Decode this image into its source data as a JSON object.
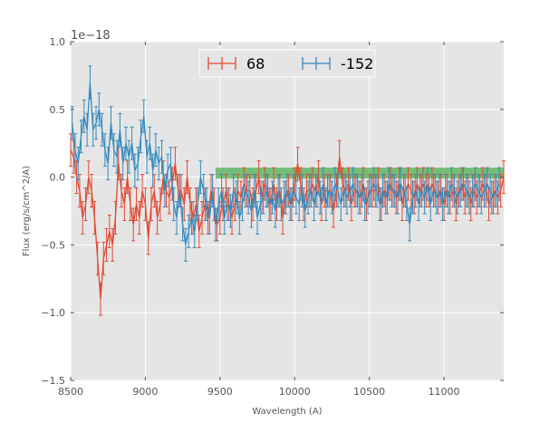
{
  "chart_data": {
    "type": "line",
    "title": "",
    "xlabel": "Wavelength (A)",
    "ylabel": "Flux (erg/s/cm^2/A)",
    "y_offset_label": "1e−18",
    "xlim": [
      8500,
      11400
    ],
    "ylim": [
      -1.5,
      1.0
    ],
    "x_ticks": [
      8500,
      9000,
      9500,
      10000,
      10500,
      11000
    ],
    "x_tick_labels": [
      "8500",
      "9000",
      "9500",
      "10000",
      "10500",
      "11000"
    ],
    "y_ticks": [
      1.0,
      0.5,
      0.0,
      -0.5,
      -1.0,
      -1.5
    ],
    "y_tick_labels": [
      "1.0",
      "0.5",
      "0.0",
      "−0.5",
      "−1.0",
      "−1.5"
    ],
    "grid": true,
    "legend_position": "top-center",
    "highlight_band": {
      "x0": 9470,
      "x1": 11400,
      "y0": -0.01,
      "y1": 0.07,
      "color": "#4CAF50"
    },
    "series": [
      {
        "name": "68",
        "color": "#E24A33",
        "x_start": 8500,
        "x_step": 20,
        "values": [
          0.2,
          0.15,
          0.0,
          -0.1,
          -0.3,
          -0.2,
          0.0,
          -0.1,
          -0.3,
          -0.6,
          -0.9,
          -0.6,
          -0.5,
          -0.4,
          -0.5,
          -0.3,
          0.1,
          -0.1,
          -0.2,
          0.0,
          -0.2,
          -0.35,
          -0.2,
          -0.3,
          -0.1,
          -0.2,
          -0.45,
          -0.2,
          -0.1,
          -0.3,
          -0.2,
          0.0,
          -0.1,
          -0.15,
          -0.05,
          0.1,
          -0.1,
          -0.1,
          -0.2,
          0.0,
          -0.2,
          -0.3,
          -0.2,
          -0.4,
          -0.3,
          -0.2,
          -0.3,
          -0.1,
          -0.2,
          -0.35,
          -0.3,
          -0.2,
          -0.1,
          -0.2,
          -0.3,
          -0.2,
          -0.1,
          -0.15,
          -0.05,
          -0.1,
          -0.1,
          -0.2,
          -0.1,
          0.0,
          -0.15,
          -0.05,
          -0.1,
          -0.2,
          -0.05,
          -0.2,
          -0.1,
          -0.3,
          -0.15,
          -0.1,
          -0.2,
          -0.05,
          0.1,
          -0.05,
          -0.2,
          -0.1,
          -0.1,
          -0.05,
          -0.1,
          0.0,
          -0.2,
          -0.1,
          -0.1,
          -0.1,
          -0.25,
          -0.1,
          0.15,
          -0.05,
          -0.1,
          -0.05,
          -0.2,
          -0.1,
          -0.1,
          -0.15,
          -0.05,
          -0.2,
          -0.1,
          -0.1,
          -0.1,
          -0.05,
          -0.2,
          -0.1,
          -0.15,
          -0.05,
          -0.1,
          -0.15,
          -0.05,
          -0.2,
          -0.1,
          -0.05,
          -0.1,
          -0.15,
          -0.05,
          -0.1,
          -0.05,
          -0.1,
          -0.1,
          -0.05,
          -0.1,
          -0.15,
          -0.1,
          -0.2,
          -0.1,
          -0.15,
          -0.1,
          -0.2,
          -0.1,
          -0.05,
          -0.15,
          -0.1,
          -0.2,
          -0.1,
          -0.15,
          -0.1,
          -0.05,
          -0.1,
          -0.2,
          -0.15,
          -0.1,
          -0.15,
          -0.1,
          0.0
        ],
        "err": 0.12
      },
      {
        "name": "-152",
        "color": "#348ABD",
        "x_start": 8510,
        "x_step": 20,
        "values": [
          0.4,
          0.2,
          0.1,
          0.3,
          0.45,
          0.35,
          0.7,
          0.35,
          0.4,
          0.5,
          0.35,
          0.2,
          0.1,
          0.4,
          0.2,
          0.15,
          0.35,
          0.1,
          0.25,
          0.15,
          0.25,
          0.05,
          0.1,
          0.3,
          0.45,
          0.15,
          0.25,
          0.05,
          0.2,
          0.1,
          0.15,
          -0.1,
          0.05,
          0.1,
          -0.2,
          -0.3,
          -0.1,
          -0.35,
          -0.5,
          -0.4,
          -0.3,
          -0.4,
          -0.2,
          0.0,
          -0.1,
          -0.2,
          -0.3,
          -0.1,
          -0.35,
          -0.2,
          -0.1,
          -0.3,
          -0.2,
          -0.25,
          -0.1,
          -0.15,
          -0.3,
          -0.2,
          -0.1,
          -0.15,
          -0.25,
          -0.1,
          -0.3,
          -0.2,
          -0.15,
          -0.1,
          -0.2,
          -0.15,
          -0.25,
          -0.1,
          -0.2,
          -0.15,
          -0.1,
          -0.2,
          -0.1,
          -0.15,
          -0.2,
          -0.1,
          -0.25,
          -0.15,
          -0.1,
          -0.2,
          -0.1,
          -0.15,
          -0.05,
          -0.2,
          -0.1,
          -0.15,
          -0.05,
          -0.1,
          -0.2,
          -0.1,
          -0.15,
          -0.1,
          -0.05,
          -0.1,
          -0.15,
          -0.1,
          -0.2,
          -0.15,
          -0.1,
          -0.05,
          -0.1,
          -0.2,
          -0.1,
          -0.15,
          -0.05,
          -0.1,
          -0.1,
          -0.15,
          -0.05,
          -0.1,
          -0.2,
          -0.35,
          -0.15,
          -0.1,
          -0.2,
          -0.1,
          -0.15,
          -0.05,
          -0.2,
          -0.1,
          -0.15,
          -0.1,
          -0.2,
          -0.1,
          -0.15,
          -0.05,
          -0.1,
          -0.15,
          -0.1,
          -0.05,
          -0.1,
          -0.15,
          -0.1,
          -0.05,
          -0.1,
          -0.15,
          -0.1,
          -0.05,
          -0.1,
          -0.15,
          -0.1,
          -0.05
        ],
        "err": 0.12
      }
    ]
  }
}
